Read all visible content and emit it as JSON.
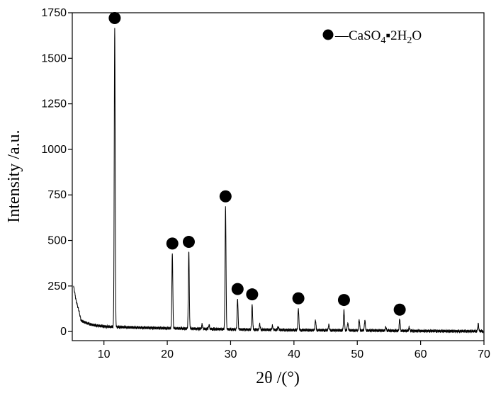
{
  "chart_data": {
    "type": "line",
    "xlabel": "2θ /(°)",
    "ylabel": "Intensity /a.u.",
    "xlim": [
      5,
      70
    ],
    "ylim": [
      -50,
      1750
    ],
    "xticks": [
      10,
      20,
      30,
      40,
      50,
      60,
      70
    ],
    "yticks": [
      0,
      250,
      500,
      750,
      1000,
      1250,
      1500,
      1750
    ],
    "grid": false,
    "legend": {
      "placement": "top-right",
      "marker": "filled-circle",
      "label_parts": [
        "—CaSO",
        "4",
        "▪2H",
        "2",
        "O"
      ]
    },
    "baseline": [
      [
        5.2,
        250
      ],
      [
        5.6,
        170
      ],
      [
        6.0,
        120
      ],
      [
        6.4,
        60
      ],
      [
        7,
        50
      ],
      [
        8,
        38
      ],
      [
        9,
        32
      ],
      [
        10,
        28
      ],
      [
        11,
        26
      ],
      [
        15,
        22
      ],
      [
        20,
        18
      ],
      [
        25,
        15
      ],
      [
        30,
        12
      ],
      [
        35,
        10
      ],
      [
        40,
        8
      ],
      [
        45,
        7
      ],
      [
        50,
        6
      ],
      [
        55,
        5
      ],
      [
        60,
        3
      ],
      [
        65,
        2
      ],
      [
        70,
        2
      ]
    ],
    "peaks": [
      {
        "x": 11.7,
        "y": 1640,
        "marked": true
      },
      {
        "x": 20.8,
        "y": 412,
        "marked": true
      },
      {
        "x": 23.4,
        "y": 430,
        "marked": true
      },
      {
        "x": 25.5,
        "y": 25,
        "marked": false
      },
      {
        "x": 26.6,
        "y": 22,
        "marked": false
      },
      {
        "x": 29.2,
        "y": 670,
        "marked": true
      },
      {
        "x": 31.1,
        "y": 170,
        "marked": true
      },
      {
        "x": 33.4,
        "y": 135,
        "marked": true
      },
      {
        "x": 34.6,
        "y": 30,
        "marked": false
      },
      {
        "x": 36.6,
        "y": 22,
        "marked": false
      },
      {
        "x": 37.5,
        "y": 18,
        "marked": false
      },
      {
        "x": 40.7,
        "y": 118,
        "marked": true
      },
      {
        "x": 43.4,
        "y": 55,
        "marked": false
      },
      {
        "x": 45.5,
        "y": 30,
        "marked": false
      },
      {
        "x": 47.9,
        "y": 108,
        "marked": true
      },
      {
        "x": 48.5,
        "y": 40,
        "marked": false
      },
      {
        "x": 50.3,
        "y": 60,
        "marked": false
      },
      {
        "x": 51.2,
        "y": 55,
        "marked": false
      },
      {
        "x": 54.5,
        "y": 20,
        "marked": false
      },
      {
        "x": 56.7,
        "y": 65,
        "marked": true
      },
      {
        "x": 58.2,
        "y": 20,
        "marked": false
      },
      {
        "x": 69.1,
        "y": 40,
        "marked": false
      }
    ]
  }
}
